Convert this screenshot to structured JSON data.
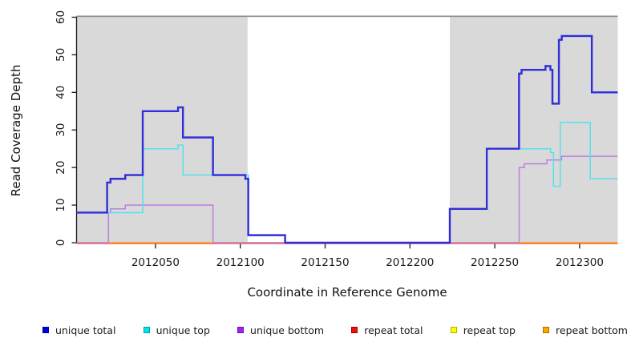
{
  "figure": {
    "xlabel": "Coordinate in Reference Genome",
    "ylabel": "Read Coverage Depth"
  },
  "legend": {
    "position": "bottom",
    "items": [
      {
        "label": "unique total",
        "color": "#0000e0",
        "border": "#0000a0"
      },
      {
        "label": "unique top",
        "color": "#00e5e5",
        "border": "#00a0a0"
      },
      {
        "label": "unique bottom",
        "color": "#a020f0",
        "border": "#7010b0"
      },
      {
        "label": "repeat total",
        "color": "#ee1111",
        "border": "#a00000"
      },
      {
        "label": "repeat top",
        "color": "#ffff00",
        "border": "#b0b000"
      },
      {
        "label": "repeat bottom",
        "color": "#ffa500",
        "border": "#b07000"
      }
    ]
  },
  "chart_data": {
    "type": "line",
    "step": true,
    "title": "",
    "xlabel": "Coordinate in Reference Genome",
    "ylabel": "Read Coverage Depth",
    "xlim": [
      2012003.5,
      2012322.5
    ],
    "ylim": [
      0,
      60
    ],
    "grid": false,
    "x_ticks": [
      {
        "value": 2012050,
        "label": "2012050"
      },
      {
        "value": 2012100,
        "label": "2012100"
      },
      {
        "value": 2012150,
        "label": "2012150"
      },
      {
        "value": 2012200,
        "label": "2012200"
      },
      {
        "value": 2012250,
        "label": "2012250"
      },
      {
        "value": 2012300,
        "label": "2012300"
      }
    ],
    "y_ticks": [
      0,
      10,
      20,
      30,
      40,
      50,
      60
    ],
    "top_rule_value": 60,
    "top_rule_color": "#8a8a8a",
    "background_bands": [
      {
        "x0": 2012003.5,
        "x1": 2012104.3,
        "color": "#d9d9d9"
      },
      {
        "x0": 2012223.5,
        "x1": 2012322.5,
        "color": "#d9d9d9"
      }
    ],
    "series": [
      {
        "name": "repeat top",
        "color": "#f5f500",
        "width": 1.2,
        "dy": 0,
        "points": [
          [
            2012003.5,
            0
          ]
        ]
      },
      {
        "name": "repeat total",
        "color": "#e04a50",
        "width": 1.2,
        "dy": 1.2,
        "points": [
          [
            2012003.5,
            0
          ]
        ]
      },
      {
        "name": "repeat bottom",
        "color": "#ff9d20",
        "width": 1.7,
        "dy": 0,
        "points": [
          [
            2012003.5,
            0
          ]
        ]
      },
      {
        "name": "unique bottom",
        "color": "#bd7fe0",
        "width": 1.5,
        "dy": 0,
        "points": [
          [
            2012003.5,
            0
          ],
          [
            2012022.3,
            8
          ],
          [
            2012023.5,
            9
          ],
          [
            2012032.2,
            10
          ],
          [
            2012083.9,
            0
          ],
          [
            2012264.4,
            20
          ],
          [
            2012267.4,
            21
          ],
          [
            2012280.7,
            22
          ],
          [
            2012289.4,
            23
          ]
        ]
      },
      {
        "name": "unique top",
        "color": "#55e2ea",
        "width": 1.5,
        "dy": 0,
        "points": [
          [
            2012003.5,
            8
          ],
          [
            2012042.5,
            25
          ],
          [
            2012063.3,
            26
          ],
          [
            2012066.2,
            18
          ],
          [
            2012104.7,
            2
          ],
          [
            2012126.4,
            0
          ],
          [
            2012223.5,
            9
          ],
          [
            2012245.3,
            25
          ],
          [
            2012282.9,
            24
          ],
          [
            2012284.6,
            15
          ],
          [
            2012288.6,
            32
          ],
          [
            2012306.3,
            17
          ]
        ]
      },
      {
        "name": "unique total",
        "color": "#2e2eda",
        "width": 2.4,
        "dy": 0,
        "points": [
          [
            2012003.5,
            8
          ],
          [
            2012021.5,
            16
          ],
          [
            2012023.5,
            17
          ],
          [
            2012032.2,
            18
          ],
          [
            2012042.5,
            35
          ],
          [
            2012063.3,
            36
          ],
          [
            2012066.2,
            28
          ],
          [
            2012083.9,
            18
          ],
          [
            2012103.0,
            17
          ],
          [
            2012104.7,
            2
          ],
          [
            2012126.4,
            0
          ],
          [
            2012223.5,
            9
          ],
          [
            2012245.3,
            25
          ],
          [
            2012264.3,
            45
          ],
          [
            2012265.8,
            46
          ],
          [
            2012279.9,
            47
          ],
          [
            2012282.8,
            46
          ],
          [
            2012284.0,
            37
          ],
          [
            2012287.8,
            54
          ],
          [
            2012289.5,
            55
          ],
          [
            2012307.2,
            40
          ]
        ]
      }
    ]
  }
}
